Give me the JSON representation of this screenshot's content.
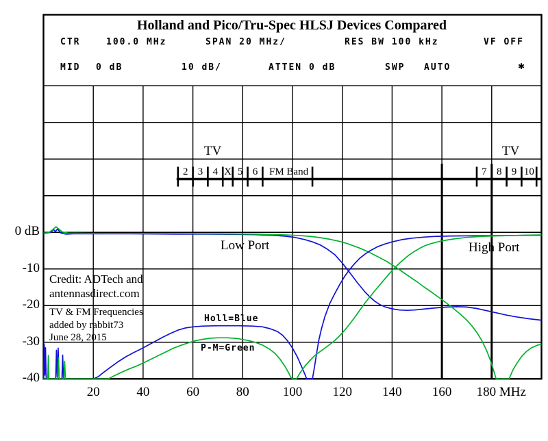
{
  "header": {
    "title": "Holland and Pico/Tru-Spec HLSJ Devices Compared",
    "row1": {
      "ctr_label": "CTR",
      "ctr_value": "100.0 MHz",
      "span": "SPAN 20 MHz/",
      "res_bw": "RES BW 100 kHz",
      "vf": "VF OFF"
    },
    "row2": {
      "mid_label": "MID",
      "mid_value": "0 dB",
      "scale": "10 dB/",
      "atten": "ATTEN 0 dB",
      "swp_label": "SWP",
      "swp_value": "AUTO",
      "marker": "✱"
    }
  },
  "band": {
    "tv_left": "TV",
    "tv_right": "TV",
    "fm_label": "FM Band",
    "boundaries_mhz": [
      54,
      60,
      66,
      72,
      76,
      82,
      88,
      108,
      174,
      180,
      186,
      192,
      198
    ],
    "channels": [
      {
        "label": "2",
        "mhz": 57
      },
      {
        "label": "3",
        "mhz": 63
      },
      {
        "label": "4",
        "mhz": 69
      },
      {
        "label": "X",
        "mhz": 74
      },
      {
        "label": "5",
        "mhz": 79
      },
      {
        "label": "6",
        "mhz": 85
      },
      {
        "label": "7",
        "mhz": 177
      },
      {
        "label": "8",
        "mhz": 183
      },
      {
        "label": "9",
        "mhz": 189
      },
      {
        "label": "10",
        "mhz": 195
      }
    ],
    "heavy_gridlines_mhz": [
      160,
      180
    ]
  },
  "annotations": {
    "low_port": "Low Port",
    "high_port": "High Port",
    "blue_legend": "Holl=Blue",
    "green_legend": "P-M=Green",
    "credit_line1": "Credit: ADTech and",
    "credit_line2": "antennasdirect.com",
    "note_line1": "TV & FM Frequencies",
    "note_line2": "added by rabbit73",
    "note_line3": "June 28, 2015"
  },
  "colors": {
    "blue_trace": "#1212d6",
    "green_trace": "#00b22d",
    "grid": "#000000"
  },
  "chart_data": {
    "type": "line",
    "title": "Holland and Pico/Tru-Spec HLSJ Devices Compared",
    "xlabel": "MHz",
    "ylabel": "dB",
    "xlim": [
      0,
      200
    ],
    "ylim": [
      -40,
      40
    ],
    "grid": true,
    "x_ticks": [
      {
        "mhz": 20,
        "label": "20"
      },
      {
        "mhz": 40,
        "label": "40"
      },
      {
        "mhz": 60,
        "label": "60"
      },
      {
        "mhz": 80,
        "label": "80"
      },
      {
        "mhz": 100,
        "label": "100"
      },
      {
        "mhz": 120,
        "label": "120"
      },
      {
        "mhz": 140,
        "label": "140"
      },
      {
        "mhz": 160,
        "label": "160"
      },
      {
        "mhz": 180,
        "label": "180 MHz"
      }
    ],
    "y_ticks": [
      {
        "db": 0,
        "label": "0 dB"
      },
      {
        "db": -10,
        "label": "-10"
      },
      {
        "db": -20,
        "label": "-20"
      },
      {
        "db": -30,
        "label": "-30"
      },
      {
        "db": -40,
        "label": "-40"
      }
    ],
    "series": [
      {
        "name": "Holland low port",
        "color": "#1212d6",
        "points": [
          [
            0,
            -0.3
          ],
          [
            1.5,
            -0.2
          ],
          [
            3,
            0
          ],
          [
            4,
            0.8
          ],
          [
            4.8,
            0.2
          ],
          [
            5.6,
            0.9
          ],
          [
            7,
            -0.2
          ],
          [
            9,
            -0.5
          ],
          [
            12,
            -0.4
          ],
          [
            18,
            -0.4
          ],
          [
            25,
            -0.4
          ],
          [
            35,
            -0.4
          ],
          [
            45,
            -0.45
          ],
          [
            55,
            -0.5
          ],
          [
            65,
            -0.5
          ],
          [
            75,
            -0.55
          ],
          [
            85,
            -0.65
          ],
          [
            92,
            -0.8
          ],
          [
            97,
            -1.05
          ],
          [
            101,
            -1.4
          ],
          [
            105,
            -2
          ],
          [
            108,
            -2.6
          ],
          [
            111,
            -3.4
          ],
          [
            114,
            -4.6
          ],
          [
            117,
            -6.1
          ],
          [
            120,
            -8.4
          ],
          [
            123,
            -11
          ],
          [
            126,
            -13.7
          ],
          [
            129,
            -16.2
          ],
          [
            131,
            -17.6
          ],
          [
            133,
            -18.8
          ],
          [
            135,
            -19.7
          ],
          [
            137,
            -20.3
          ],
          [
            139,
            -20.7
          ],
          [
            141,
            -21
          ],
          [
            143,
            -21.2
          ],
          [
            146,
            -21.3
          ],
          [
            149,
            -21.2
          ],
          [
            152,
            -21
          ],
          [
            155,
            -20.8
          ],
          [
            158,
            -20.6
          ],
          [
            162,
            -20.4
          ],
          [
            166,
            -20.3
          ],
          [
            170,
            -20.4
          ],
          [
            174,
            -20.8
          ],
          [
            178,
            -21.4
          ],
          [
            182,
            -22
          ],
          [
            186,
            -22.6
          ],
          [
            190,
            -23.1
          ],
          [
            195,
            -23.6
          ],
          [
            200,
            -24
          ]
        ]
      },
      {
        "name": "Pico-Macom low port",
        "color": "#00b22d",
        "points": [
          [
            0,
            -0.2
          ],
          [
            2,
            -0.1
          ],
          [
            3.5,
            0.6
          ],
          [
            5,
            1.5
          ],
          [
            6,
            1
          ],
          [
            7.5,
            0.1
          ],
          [
            10,
            -0.2
          ],
          [
            15,
            -0.25
          ],
          [
            25,
            -0.3
          ],
          [
            40,
            -0.3
          ],
          [
            55,
            -0.35
          ],
          [
            70,
            -0.4
          ],
          [
            85,
            -0.5
          ],
          [
            95,
            -0.65
          ],
          [
            102,
            -0.85
          ],
          [
            107,
            -1.1
          ],
          [
            111,
            -1.45
          ],
          [
            115,
            -1.9
          ],
          [
            119,
            -2.5
          ],
          [
            123,
            -3.3
          ],
          [
            127,
            -4.3
          ],
          [
            131,
            -5.5
          ],
          [
            135,
            -6.9
          ],
          [
            138,
            -8
          ],
          [
            141,
            -9.3
          ],
          [
            144,
            -10.7
          ],
          [
            147,
            -12.1
          ],
          [
            150,
            -13.5
          ],
          [
            153,
            -15
          ],
          [
            156,
            -16.4
          ],
          [
            159,
            -17.9
          ],
          [
            162,
            -19.4
          ],
          [
            165,
            -21
          ],
          [
            168,
            -22.7
          ],
          [
            170,
            -24
          ],
          [
            172,
            -25.5
          ],
          [
            174,
            -27.3
          ],
          [
            176,
            -29.5
          ],
          [
            178,
            -32.3
          ],
          [
            179.5,
            -35
          ],
          [
            181,
            -38.2
          ],
          [
            181.8,
            -40
          ],
          [
            187,
            -40
          ],
          [
            188.5,
            -37.6
          ],
          [
            190,
            -35.9
          ],
          [
            192,
            -33.9
          ],
          [
            194,
            -32.5
          ],
          [
            196,
            -31.5
          ],
          [
            198,
            -30.9
          ],
          [
            200,
            -30.5
          ]
        ]
      },
      {
        "name": "Holland high port",
        "color": "#1212d6",
        "points": [
          [
            0,
            -40
          ],
          [
            0.3,
            -30.6
          ],
          [
            0.55,
            -39
          ],
          [
            0.8,
            -31.5
          ],
          [
            1.1,
            -40
          ],
          [
            4.9,
            -40
          ],
          [
            5.2,
            -32.2
          ],
          [
            5.5,
            -39.5
          ],
          [
            5.9,
            -31.6
          ],
          [
            6.3,
            -40
          ],
          [
            7.4,
            -40
          ],
          [
            7.7,
            -33.5
          ],
          [
            8,
            -40
          ],
          [
            20,
            -40
          ],
          [
            22,
            -39.4
          ],
          [
            24,
            -38.3
          ],
          [
            27,
            -36.8
          ],
          [
            30,
            -35.3
          ],
          [
            33,
            -34
          ],
          [
            36,
            -32.9
          ],
          [
            39,
            -31.9
          ],
          [
            42,
            -30.8
          ],
          [
            45,
            -29.7
          ],
          [
            48,
            -28.6
          ],
          [
            51,
            -27.6
          ],
          [
            54,
            -26.7
          ],
          [
            57,
            -26.1
          ],
          [
            60,
            -25.8
          ],
          [
            64,
            -25.6
          ],
          [
            70,
            -25.5
          ],
          [
            78,
            -25.5
          ],
          [
            84,
            -25.6
          ],
          [
            88,
            -25.8
          ],
          [
            91,
            -26.3
          ],
          [
            94,
            -27.1
          ],
          [
            96,
            -28.1
          ],
          [
            98,
            -29.6
          ],
          [
            100,
            -31.6
          ],
          [
            102,
            -34.1
          ],
          [
            103.5,
            -36.4
          ],
          [
            105,
            -38.8
          ],
          [
            105.7,
            -40
          ],
          [
            108,
            -40
          ],
          [
            108.8,
            -36.9
          ],
          [
            109.6,
            -33.4
          ],
          [
            110.6,
            -29.4
          ],
          [
            111.6,
            -26.4
          ],
          [
            113,
            -23
          ],
          [
            115,
            -19.4
          ],
          [
            117,
            -16.7
          ],
          [
            119,
            -14.2
          ],
          [
            121,
            -12
          ],
          [
            123,
            -10.1
          ],
          [
            125,
            -8.5
          ],
          [
            127,
            -7.1
          ],
          [
            129,
            -6
          ],
          [
            131,
            -5.1
          ],
          [
            134,
            -4
          ],
          [
            137,
            -3.2
          ],
          [
            140,
            -2.6
          ],
          [
            144,
            -2
          ],
          [
            148,
            -1.6
          ],
          [
            153,
            -1.3
          ],
          [
            158,
            -1.1
          ],
          [
            164,
            -1
          ],
          [
            172,
            -0.95
          ],
          [
            180,
            -0.9
          ],
          [
            190,
            -0.85
          ],
          [
            200,
            -0.8
          ]
        ]
      },
      {
        "name": "Pico-Macom high port",
        "color": "#00b22d",
        "points": [
          [
            0,
            -40
          ],
          [
            1.7,
            -40
          ],
          [
            1.95,
            -33.6
          ],
          [
            2.2,
            -40
          ],
          [
            5.7,
            -40
          ],
          [
            6,
            -34.2
          ],
          [
            6.3,
            -40
          ],
          [
            8.2,
            -40
          ],
          [
            8.5,
            -35.2
          ],
          [
            8.8,
            -40
          ],
          [
            26,
            -40
          ],
          [
            28,
            -39.3
          ],
          [
            31,
            -38.3
          ],
          [
            34,
            -37.4
          ],
          [
            37,
            -36.6
          ],
          [
            40,
            -35.7
          ],
          [
            43,
            -34.7
          ],
          [
            46,
            -33.7
          ],
          [
            49,
            -32.7
          ],
          [
            52,
            -31.7
          ],
          [
            55,
            -30.9
          ],
          [
            58,
            -30.2
          ],
          [
            61,
            -29.6
          ],
          [
            64,
            -29.2
          ],
          [
            67,
            -28.9
          ],
          [
            70,
            -28.8
          ],
          [
            74,
            -28.8
          ],
          [
            78,
            -29
          ],
          [
            82,
            -29.5
          ],
          [
            85,
            -30
          ],
          [
            88,
            -30.8
          ],
          [
            91,
            -32
          ],
          [
            93,
            -33.1
          ],
          [
            95,
            -34.6
          ],
          [
            97,
            -36.6
          ],
          [
            98.5,
            -38.4
          ],
          [
            99.4,
            -39.7
          ],
          [
            100,
            -40
          ],
          [
            101.6,
            -40
          ],
          [
            103,
            -38.4
          ],
          [
            105,
            -36.5
          ],
          [
            107,
            -35
          ],
          [
            109,
            -33.6
          ],
          [
            111,
            -32.6
          ],
          [
            113,
            -31.6
          ],
          [
            115,
            -30.6
          ],
          [
            117,
            -29.5
          ],
          [
            119,
            -28.2
          ],
          [
            121,
            -26.7
          ],
          [
            123,
            -25
          ],
          [
            125,
            -23.2
          ],
          [
            127,
            -21.3
          ],
          [
            129,
            -19.4
          ],
          [
            131,
            -17.7
          ],
          [
            133,
            -16
          ],
          [
            135,
            -14.4
          ],
          [
            137,
            -12.8
          ],
          [
            139,
            -11.2
          ],
          [
            141,
            -9.7
          ],
          [
            143,
            -8.4
          ],
          [
            145,
            -7.2
          ],
          [
            147,
            -6.1
          ],
          [
            149,
            -5.2
          ],
          [
            151,
            -4.4
          ],
          [
            153,
            -3.7
          ],
          [
            156,
            -3
          ],
          [
            159,
            -2.5
          ],
          [
            162,
            -2.1
          ],
          [
            166,
            -1.7
          ],
          [
            170,
            -1.4
          ],
          [
            175,
            -1.15
          ],
          [
            180,
            -1
          ],
          [
            186,
            -0.9
          ],
          [
            193,
            -0.8
          ],
          [
            200,
            -0.7
          ]
        ]
      }
    ]
  }
}
